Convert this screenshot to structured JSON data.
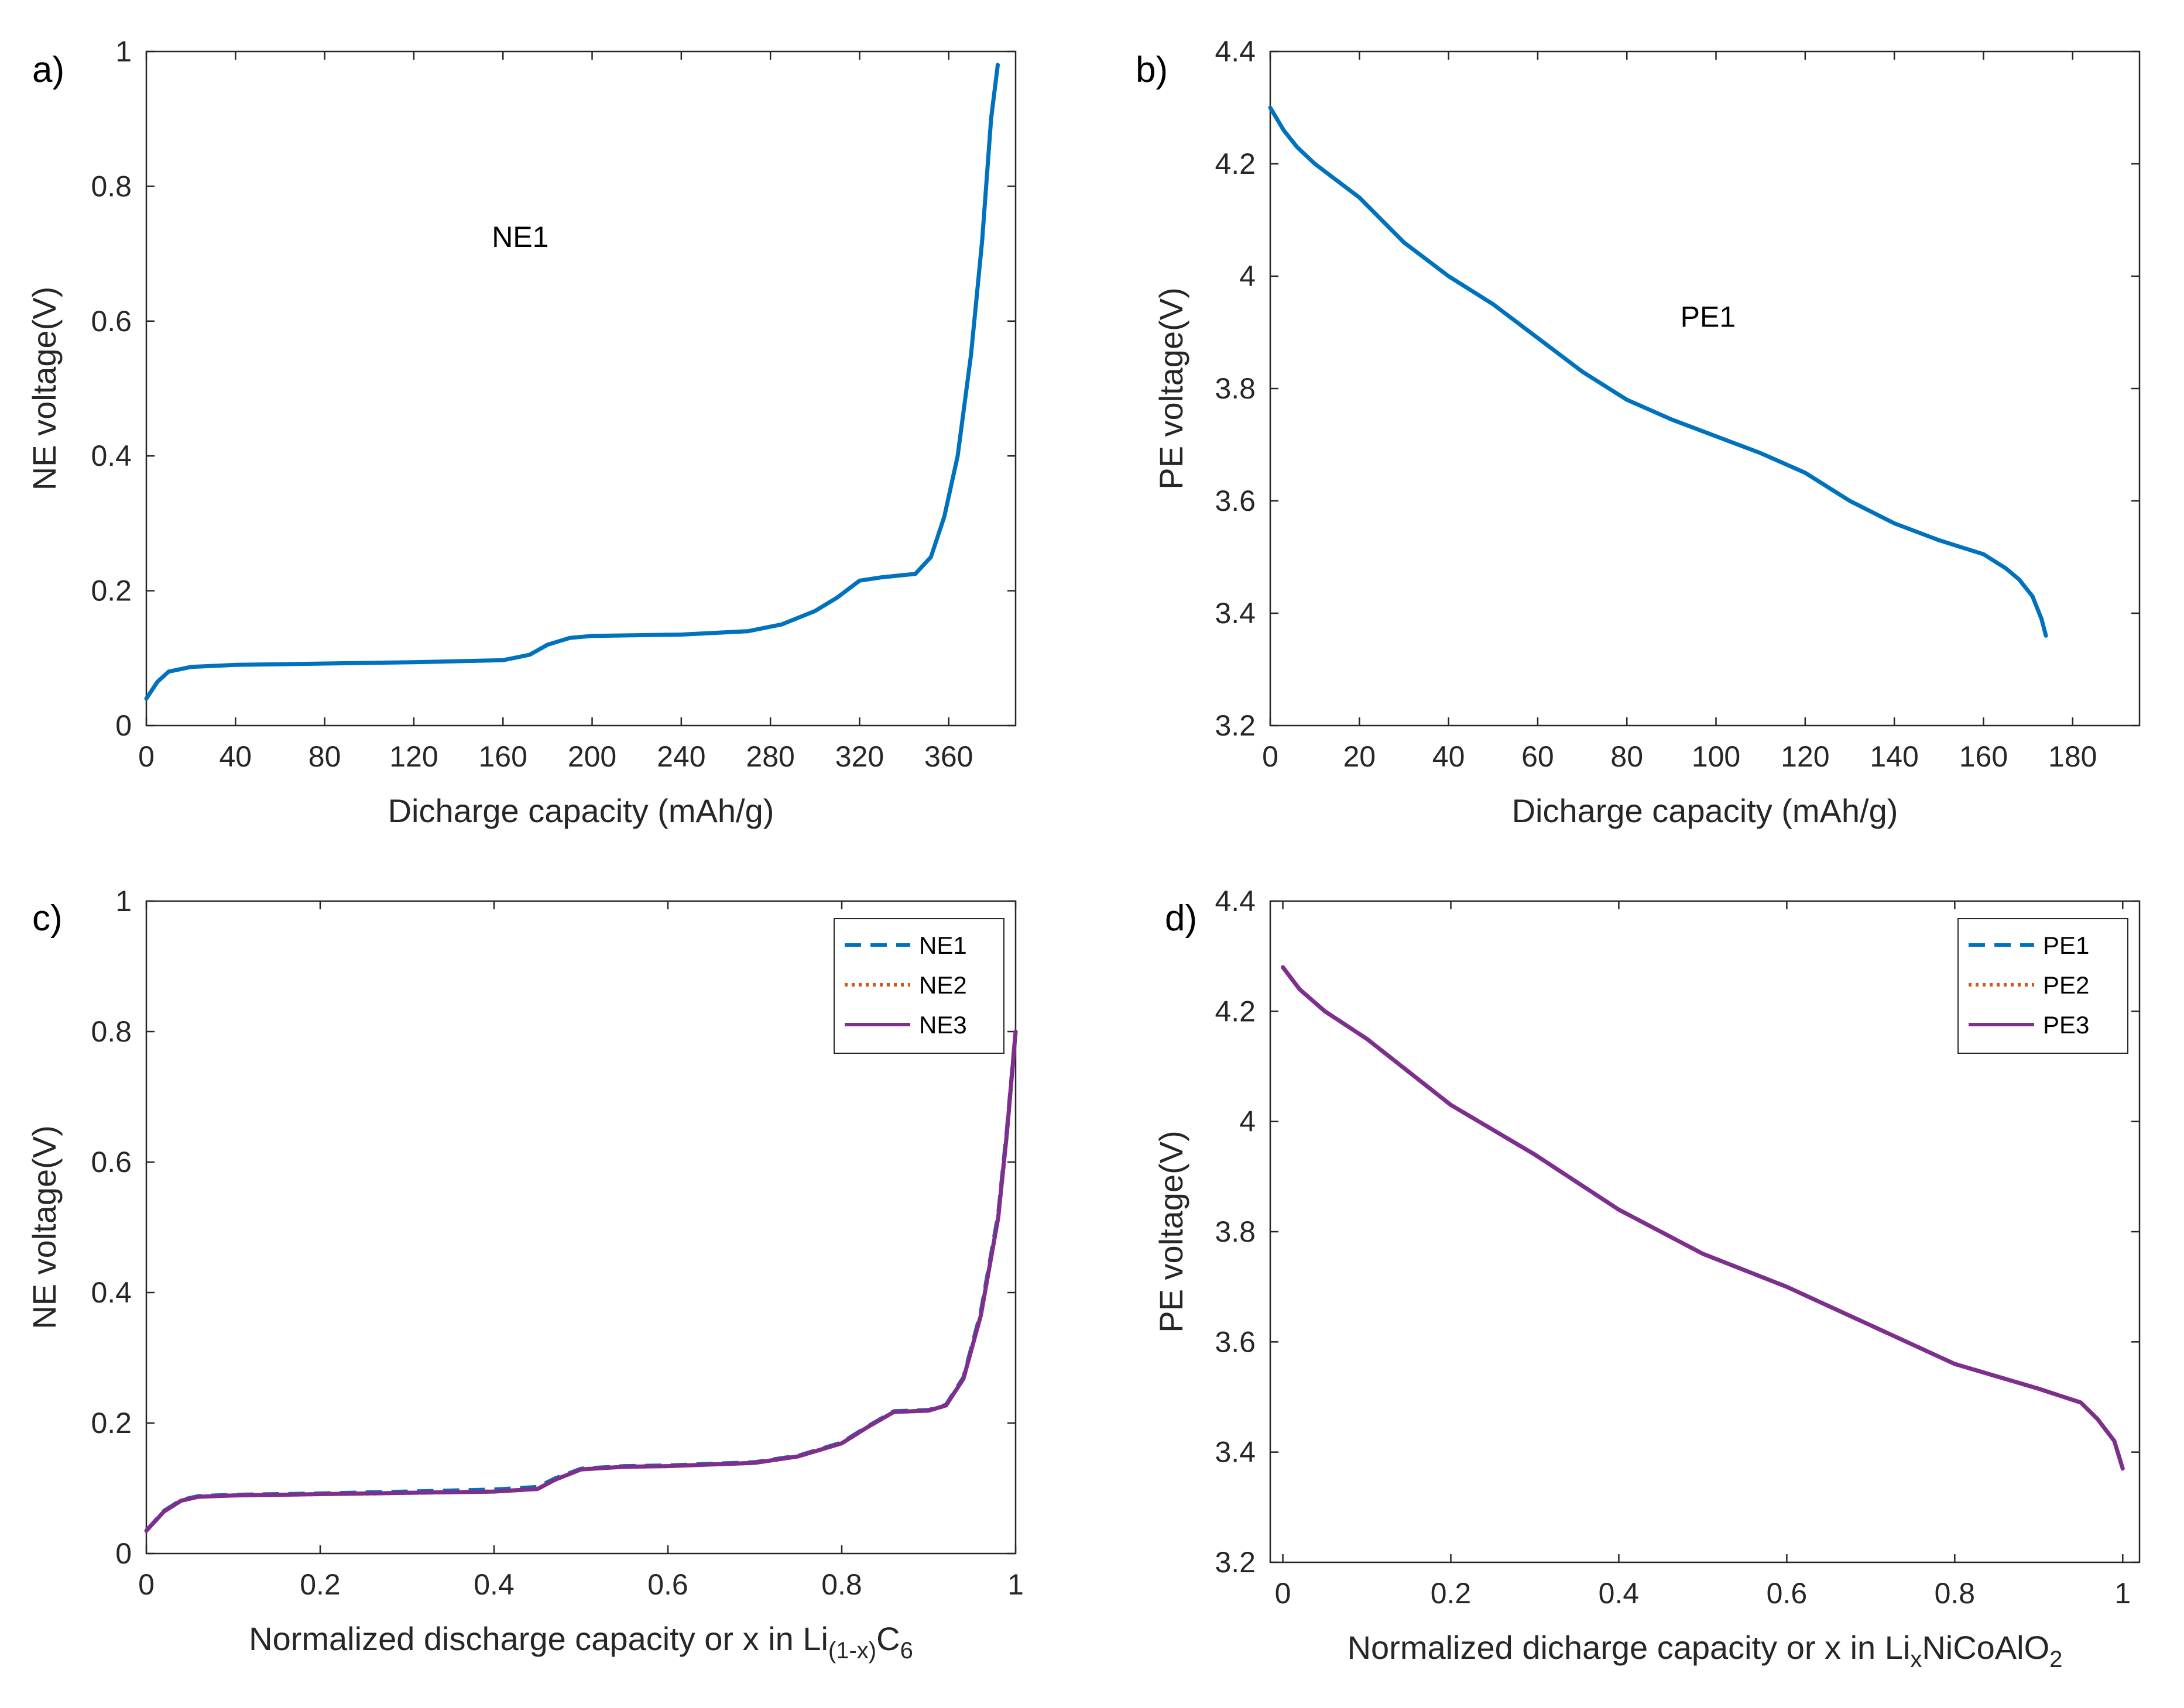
{
  "colors": {
    "blue": "#0072BD",
    "orange": "#D95319",
    "purple": "#7E2F8E",
    "axis": "#262626"
  },
  "chart_data": [
    {
      "id": "a",
      "panel_label": "a)",
      "type": "line",
      "xlabel": "Dicharge capacity (mAh/g)",
      "ylabel": "NE voltage(V)",
      "xlim": [
        0,
        390
      ],
      "ylim": [
        0,
        1
      ],
      "xticks": [
        0,
        40,
        80,
        120,
        160,
        200,
        240,
        280,
        320,
        360
      ],
      "xtick_labels": [
        "0",
        "40",
        "80",
        "120",
        "160",
        "200",
        "240",
        "280",
        "320",
        "360"
      ],
      "yticks": [
        0,
        0.2,
        0.4,
        0.6,
        0.8,
        1
      ],
      "ytick_labels": [
        "0",
        "0.2",
        "0.4",
        "0.6",
        "0.8",
        "1"
      ],
      "annotation": {
        "text": "NE1",
        "x": 155,
        "y": 0.71
      },
      "series": [
        {
          "name": "NE1",
          "style": "solid",
          "color": "blue",
          "points": [
            [
              0,
              0.04
            ],
            [
              5,
              0.065
            ],
            [
              10,
              0.08
            ],
            [
              20,
              0.087
            ],
            [
              40,
              0.09
            ],
            [
              80,
              0.092
            ],
            [
              120,
              0.094
            ],
            [
              160,
              0.097
            ],
            [
              172,
              0.105
            ],
            [
              180,
              0.12
            ],
            [
              190,
              0.13
            ],
            [
              200,
              0.133
            ],
            [
              240,
              0.135
            ],
            [
              270,
              0.14
            ],
            [
              285,
              0.15
            ],
            [
              300,
              0.17
            ],
            [
              310,
              0.19
            ],
            [
              320,
              0.215
            ],
            [
              330,
              0.22
            ],
            [
              345,
              0.225
            ],
            [
              352,
              0.25
            ],
            [
              358,
              0.31
            ],
            [
              364,
              0.4
            ],
            [
              370,
              0.55
            ],
            [
              375,
              0.72
            ],
            [
              379,
              0.9
            ],
            [
              382,
              0.98
            ]
          ]
        }
      ]
    },
    {
      "id": "b",
      "panel_label": "b)",
      "type": "line",
      "xlabel": "Dicharge capacity (mAh/g)",
      "ylabel": "PE voltage(V)",
      "xlim": [
        0,
        195
      ],
      "ylim": [
        3.2,
        4.4
      ],
      "xticks": [
        0,
        20,
        40,
        60,
        80,
        100,
        120,
        140,
        160,
        180
      ],
      "xtick_labels": [
        "0",
        "20",
        "40",
        "60",
        "80",
        "100",
        "120",
        "140",
        "160",
        "180"
      ],
      "yticks": [
        3.2,
        3.4,
        3.6,
        3.8,
        4.0,
        4.2,
        4.4
      ],
      "ytick_labels": [
        "3.2",
        "3.4",
        "3.6",
        "3.8",
        "4",
        "4.2",
        "4.4"
      ],
      "annotation": {
        "text": "PE1",
        "x": 92,
        "y": 3.91
      },
      "series": [
        {
          "name": "PE1",
          "style": "solid",
          "color": "blue",
          "points": [
            [
              0,
              4.3
            ],
            [
              3,
              4.26
            ],
            [
              6,
              4.23
            ],
            [
              10,
              4.2
            ],
            [
              20,
              4.14
            ],
            [
              30,
              4.06
            ],
            [
              40,
              4.0
            ],
            [
              50,
              3.95
            ],
            [
              60,
              3.89
            ],
            [
              70,
              3.83
            ],
            [
              80,
              3.78
            ],
            [
              90,
              3.745
            ],
            [
              100,
              3.715
            ],
            [
              110,
              3.685
            ],
            [
              120,
              3.65
            ],
            [
              130,
              3.6
            ],
            [
              140,
              3.56
            ],
            [
              150,
              3.53
            ],
            [
              160,
              3.505
            ],
            [
              165,
              3.48
            ],
            [
              168,
              3.46
            ],
            [
              171,
              3.43
            ],
            [
              173,
              3.39
            ],
            [
              174,
              3.36
            ]
          ]
        }
      ]
    },
    {
      "id": "c",
      "panel_label": "c)",
      "type": "line",
      "xlabel_main": "Normalized discharge capacity or x in Li",
      "xlabel_sub1": "(1-x)",
      "xlabel_mid": "C",
      "xlabel_sub2": "6",
      "ylabel": "NE voltage(V)",
      "xlim": [
        0,
        1
      ],
      "ylim": [
        0,
        1
      ],
      "xticks": [
        0,
        0.2,
        0.4,
        0.6,
        0.8,
        1
      ],
      "xtick_labels": [
        "0",
        "0.2",
        "0.4",
        "0.6",
        "0.8",
        "1"
      ],
      "yticks": [
        0,
        0.2,
        0.4,
        0.6,
        0.8,
        1
      ],
      "ytick_labels": [
        "0",
        "0.2",
        "0.4",
        "0.6",
        "0.8",
        "1"
      ],
      "legend_position": "top-right",
      "series": [
        {
          "name": "NE1",
          "style": "dashed",
          "color": "blue",
          "points": [
            [
              0,
              0.035
            ],
            [
              0.02,
              0.065
            ],
            [
              0.04,
              0.082
            ],
            [
              0.06,
              0.088
            ],
            [
              0.1,
              0.09
            ],
            [
              0.2,
              0.092
            ],
            [
              0.3,
              0.095
            ],
            [
              0.4,
              0.098
            ],
            [
              0.45,
              0.102
            ],
            [
              0.47,
              0.115
            ],
            [
              0.5,
              0.13
            ],
            [
              0.55,
              0.134
            ],
            [
              0.6,
              0.135
            ],
            [
              0.7,
              0.14
            ],
            [
              0.75,
              0.15
            ],
            [
              0.8,
              0.17
            ],
            [
              0.83,
              0.195
            ],
            [
              0.86,
              0.218
            ],
            [
              0.9,
              0.22
            ],
            [
              0.92,
              0.228
            ],
            [
              0.94,
              0.27
            ],
            [
              0.96,
              0.37
            ],
            [
              0.98,
              0.52
            ],
            [
              0.99,
              0.65
            ],
            [
              1.0,
              0.8
            ]
          ]
        },
        {
          "name": "NE2",
          "style": "dotted",
          "color": "orange",
          "points": [
            [
              0,
              0.035
            ],
            [
              0.02,
              0.064
            ],
            [
              0.04,
              0.081
            ],
            [
              0.06,
              0.087
            ],
            [
              0.1,
              0.089
            ],
            [
              0.2,
              0.091
            ],
            [
              0.3,
              0.093
            ],
            [
              0.4,
              0.095
            ],
            [
              0.45,
              0.099
            ],
            [
              0.47,
              0.113
            ],
            [
              0.5,
              0.129
            ],
            [
              0.55,
              0.133
            ],
            [
              0.6,
              0.134
            ],
            [
              0.7,
              0.139
            ],
            [
              0.75,
              0.149
            ],
            [
              0.8,
              0.169
            ],
            [
              0.83,
              0.194
            ],
            [
              0.86,
              0.217
            ],
            [
              0.9,
              0.219
            ],
            [
              0.92,
              0.227
            ],
            [
              0.94,
              0.268
            ],
            [
              0.96,
              0.365
            ],
            [
              0.98,
              0.515
            ],
            [
              0.99,
              0.645
            ],
            [
              1.0,
              0.8
            ]
          ]
        },
        {
          "name": "NE3",
          "style": "solid",
          "color": "purple",
          "points": [
            [
              0,
              0.035
            ],
            [
              0.02,
              0.064
            ],
            [
              0.04,
              0.081
            ],
            [
              0.06,
              0.087
            ],
            [
              0.1,
              0.089
            ],
            [
              0.2,
              0.091
            ],
            [
              0.3,
              0.093
            ],
            [
              0.4,
              0.095
            ],
            [
              0.45,
              0.099
            ],
            [
              0.47,
              0.113
            ],
            [
              0.5,
              0.129
            ],
            [
              0.55,
              0.133
            ],
            [
              0.6,
              0.134
            ],
            [
              0.7,
              0.139
            ],
            [
              0.75,
              0.149
            ],
            [
              0.8,
              0.169
            ],
            [
              0.83,
              0.194
            ],
            [
              0.86,
              0.217
            ],
            [
              0.9,
              0.219
            ],
            [
              0.92,
              0.227
            ],
            [
              0.94,
              0.268
            ],
            [
              0.96,
              0.365
            ],
            [
              0.98,
              0.515
            ],
            [
              0.99,
              0.645
            ],
            [
              1.0,
              0.8
            ]
          ]
        }
      ]
    },
    {
      "id": "d",
      "panel_label": "d)",
      "type": "line",
      "xlabel_main": "Normalized dicharge capacity or x in Li",
      "xlabel_sub1": "x",
      "xlabel_mid": "NiCoAlO",
      "xlabel_sub2": "2",
      "ylabel": "PE voltage(V)",
      "xlim": [
        -0.015,
        1.02
      ],
      "ylim": [
        3.2,
        4.4
      ],
      "xticks": [
        0,
        0.2,
        0.4,
        0.6,
        0.8,
        1
      ],
      "xtick_labels": [
        "0",
        "0.2",
        "0.4",
        "0.6",
        "0.8",
        "1"
      ],
      "yticks": [
        3.2,
        3.4,
        3.6,
        3.8,
        4.0,
        4.2,
        4.4
      ],
      "ytick_labels": [
        "3.2",
        "3.4",
        "3.6",
        "3.8",
        "4",
        "4.2",
        "4.4"
      ],
      "legend_position": "top-right",
      "series": [
        {
          "name": "PE1",
          "style": "dashed",
          "color": "blue",
          "points": [
            [
              0,
              4.28
            ],
            [
              0.02,
              4.24
            ],
            [
              0.05,
              4.2
            ],
            [
              0.1,
              4.15
            ],
            [
              0.2,
              4.03
            ],
            [
              0.3,
              3.94
            ],
            [
              0.4,
              3.84
            ],
            [
              0.5,
              3.76
            ],
            [
              0.6,
              3.7
            ],
            [
              0.7,
              3.63
            ],
            [
              0.8,
              3.56
            ],
            [
              0.9,
              3.515
            ],
            [
              0.95,
              3.49
            ],
            [
              0.97,
              3.46
            ],
            [
              0.99,
              3.42
            ],
            [
              1.0,
              3.37
            ]
          ]
        },
        {
          "name": "PE2",
          "style": "dotted",
          "color": "orange",
          "points": [
            [
              0,
              4.28
            ],
            [
              0.02,
              4.24
            ],
            [
              0.05,
              4.2
            ],
            [
              0.1,
              4.15
            ],
            [
              0.2,
              4.03
            ],
            [
              0.3,
              3.94
            ],
            [
              0.4,
              3.84
            ],
            [
              0.5,
              3.76
            ],
            [
              0.6,
              3.7
            ],
            [
              0.7,
              3.63
            ],
            [
              0.8,
              3.56
            ],
            [
              0.9,
              3.515
            ],
            [
              0.95,
              3.49
            ],
            [
              0.97,
              3.46
            ],
            [
              0.99,
              3.42
            ],
            [
              1.0,
              3.37
            ]
          ]
        },
        {
          "name": "PE3",
          "style": "solid",
          "color": "purple",
          "points": [
            [
              0,
              4.28
            ],
            [
              0.02,
              4.24
            ],
            [
              0.05,
              4.2
            ],
            [
              0.1,
              4.15
            ],
            [
              0.2,
              4.03
            ],
            [
              0.3,
              3.94
            ],
            [
              0.4,
              3.84
            ],
            [
              0.5,
              3.76
            ],
            [
              0.6,
              3.7
            ],
            [
              0.7,
              3.63
            ],
            [
              0.8,
              3.56
            ],
            [
              0.9,
              3.515
            ],
            [
              0.95,
              3.49
            ],
            [
              0.97,
              3.46
            ],
            [
              0.99,
              3.42
            ],
            [
              1.0,
              3.37
            ]
          ]
        }
      ]
    }
  ]
}
